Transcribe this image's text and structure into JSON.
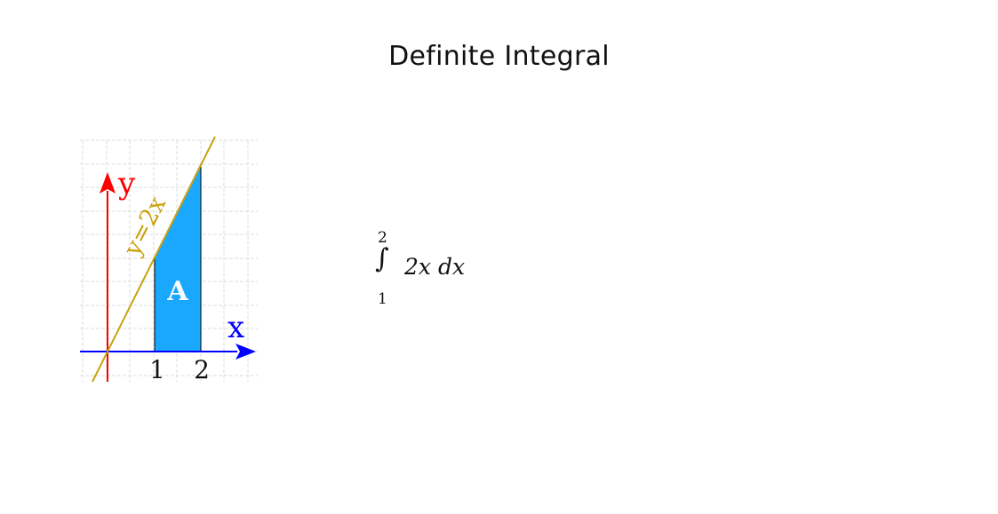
{
  "page": {
    "title": "Definite Integral"
  },
  "diagram": {
    "function_label": "y=2x",
    "area_label": "A",
    "x_axis_label": "x",
    "y_axis_label": "y",
    "ticks": [
      "1",
      "2"
    ],
    "lower_bound": 1,
    "upper_bound": 2,
    "slope": 2,
    "colors": {
      "line": "#c9a20f",
      "area": "#1aa8ff",
      "x_axis": "#0000ff",
      "y_axis": "#ff0000",
      "grid": "#dddddd"
    }
  },
  "formula": {
    "upper": "2",
    "lower": "1",
    "integrand": "2x dx"
  }
}
